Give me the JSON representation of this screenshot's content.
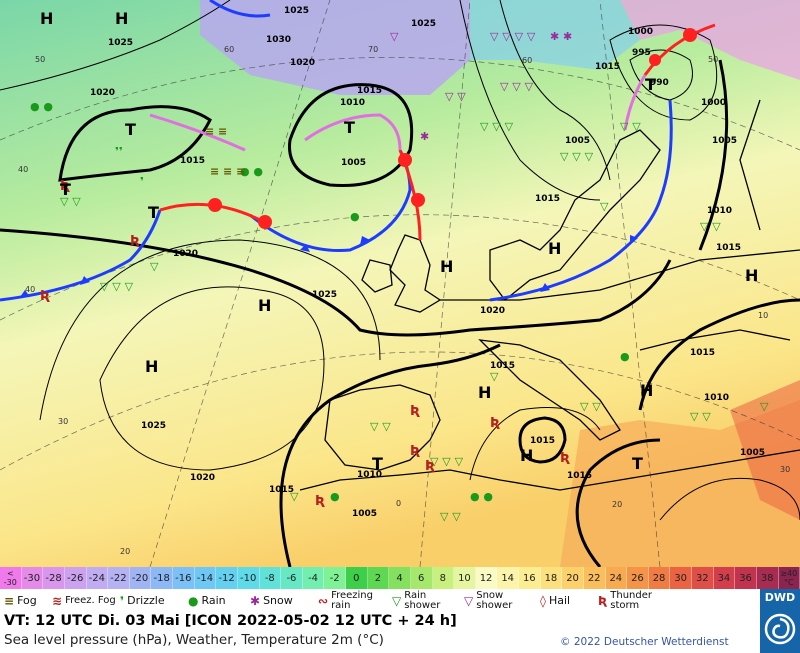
{
  "map_labels": {
    "pressure_centers": [
      "H",
      "H",
      "H",
      "H",
      "H",
      "H",
      "H",
      "H",
      "H",
      "H",
      "T",
      "T",
      "T",
      "T",
      "T",
      "T",
      "T"
    ],
    "isobars": [
      "1025",
      "1020",
      "1020",
      "1025",
      "1020",
      "1015",
      "1025",
      "1030",
      "1025",
      "1020",
      "1015",
      "1010",
      "1005",
      "1015",
      "1015",
      "1005",
      "1000",
      "995",
      "990",
      "1000",
      "1005",
      "1010",
      "1015",
      "1015",
      "1015",
      "1015",
      "1010",
      "1005",
      "1020",
      "1025",
      "1015",
      "1010",
      "1005",
      "1015"
    ],
    "temperatures": [
      "60",
      "50",
      "40",
      "40",
      "30",
      "20",
      "70",
      "60",
      "50",
      "0",
      "10",
      "20",
      "30"
    ]
  },
  "colors": {
    "warm_front": "#ff2020",
    "cold_front": "#1e3cff",
    "occluded_front": "#e070e0",
    "isobar": "#000000",
    "land_outline": "#000000"
  },
  "scale": {
    "cells": [
      {
        "label": "< -30",
        "color": "#f07aec"
      },
      {
        "label": "-30",
        "color": "#e48ae8"
      },
      {
        "label": "-28",
        "color": "#d896ec"
      },
      {
        "label": "-26",
        "color": "#cca2f0"
      },
      {
        "label": "-24",
        "color": "#c0acf2"
      },
      {
        "label": "-22",
        "color": "#b4b2f2"
      },
      {
        "label": "-20",
        "color": "#a0b4f4"
      },
      {
        "label": "-18",
        "color": "#8cb8f6"
      },
      {
        "label": "-16",
        "color": "#7cc0f8"
      },
      {
        "label": "-14",
        "color": "#6ec8f6"
      },
      {
        "label": "-12",
        "color": "#64d0f0"
      },
      {
        "label": "-10",
        "color": "#5edae8"
      },
      {
        "label": "-8",
        "color": "#60e2d8"
      },
      {
        "label": "-6",
        "color": "#66e8c4"
      },
      {
        "label": "-4",
        "color": "#72eeae"
      },
      {
        "label": "-2",
        "color": "#80f296"
      },
      {
        "label": "0",
        "color": "#3ecf4a"
      },
      {
        "label": "2",
        "color": "#5ed852"
      },
      {
        "label": "4",
        "color": "#84e05e"
      },
      {
        "label": "6",
        "color": "#a6e86c"
      },
      {
        "label": "8",
        "color": "#c8f07e"
      },
      {
        "label": "10",
        "color": "#e6f6a0"
      },
      {
        "label": "12",
        "color": "#fafac4"
      },
      {
        "label": "14",
        "color": "#fbf4aa"
      },
      {
        "label": "16",
        "color": "#fcec92"
      },
      {
        "label": "18",
        "color": "#fce07e"
      },
      {
        "label": "20",
        "color": "#fcd06a"
      },
      {
        "label": "22",
        "color": "#fbbe5c"
      },
      {
        "label": "24",
        "color": "#f8aa50"
      },
      {
        "label": "26",
        "color": "#f49448"
      },
      {
        "label": "28",
        "color": "#f07c44"
      },
      {
        "label": "30",
        "color": "#ea6444"
      },
      {
        "label": "32",
        "color": "#e04e48"
      },
      {
        "label": "34",
        "color": "#d23e4c"
      },
      {
        "label": "36",
        "color": "#c03450"
      },
      {
        "label": "38",
        "color": "#a82c52"
      },
      {
        "label": "≥40 °C",
        "color": "#8c2450"
      }
    ]
  },
  "legend": {
    "items": [
      {
        "symbol": "≡",
        "label": "Fog",
        "color": "#665500"
      },
      {
        "symbol": "≋",
        "label": "Freez. Fog",
        "color": "#b82020"
      },
      {
        "symbol": "❜",
        "label": "Drizzle",
        "color": "#1a9a1a"
      },
      {
        "symbol": "●",
        "label": "Rain",
        "color": "#1a9a1a"
      },
      {
        "symbol": "✱",
        "label": "Snow",
        "color": "#9a2a9a"
      },
      {
        "symbol": "∾",
        "label": "Freezing rain",
        "color": "#b82020"
      },
      {
        "symbol": "▽",
        "label": "Rain shower",
        "color": "#1a9a1a"
      },
      {
        "symbol": "▽",
        "label": "Snow shower",
        "color": "#9a2a9a"
      },
      {
        "symbol": "◊",
        "label": "Hail",
        "color": "#b82020"
      },
      {
        "symbol": "Ʀ",
        "label": "Thunder storm",
        "color": "#b82020"
      }
    ]
  },
  "info": {
    "valid_time": "VT: 12 UTC Di.  03 Mai [ICON 2022-05-02  12 UTC + 24 h]",
    "description": "Sea level pressure (hPa), Weather, Temperature 2m (°C)",
    "copyright": "© 2022 Deutscher Wetterdienst",
    "logo_text": "DWD"
  }
}
